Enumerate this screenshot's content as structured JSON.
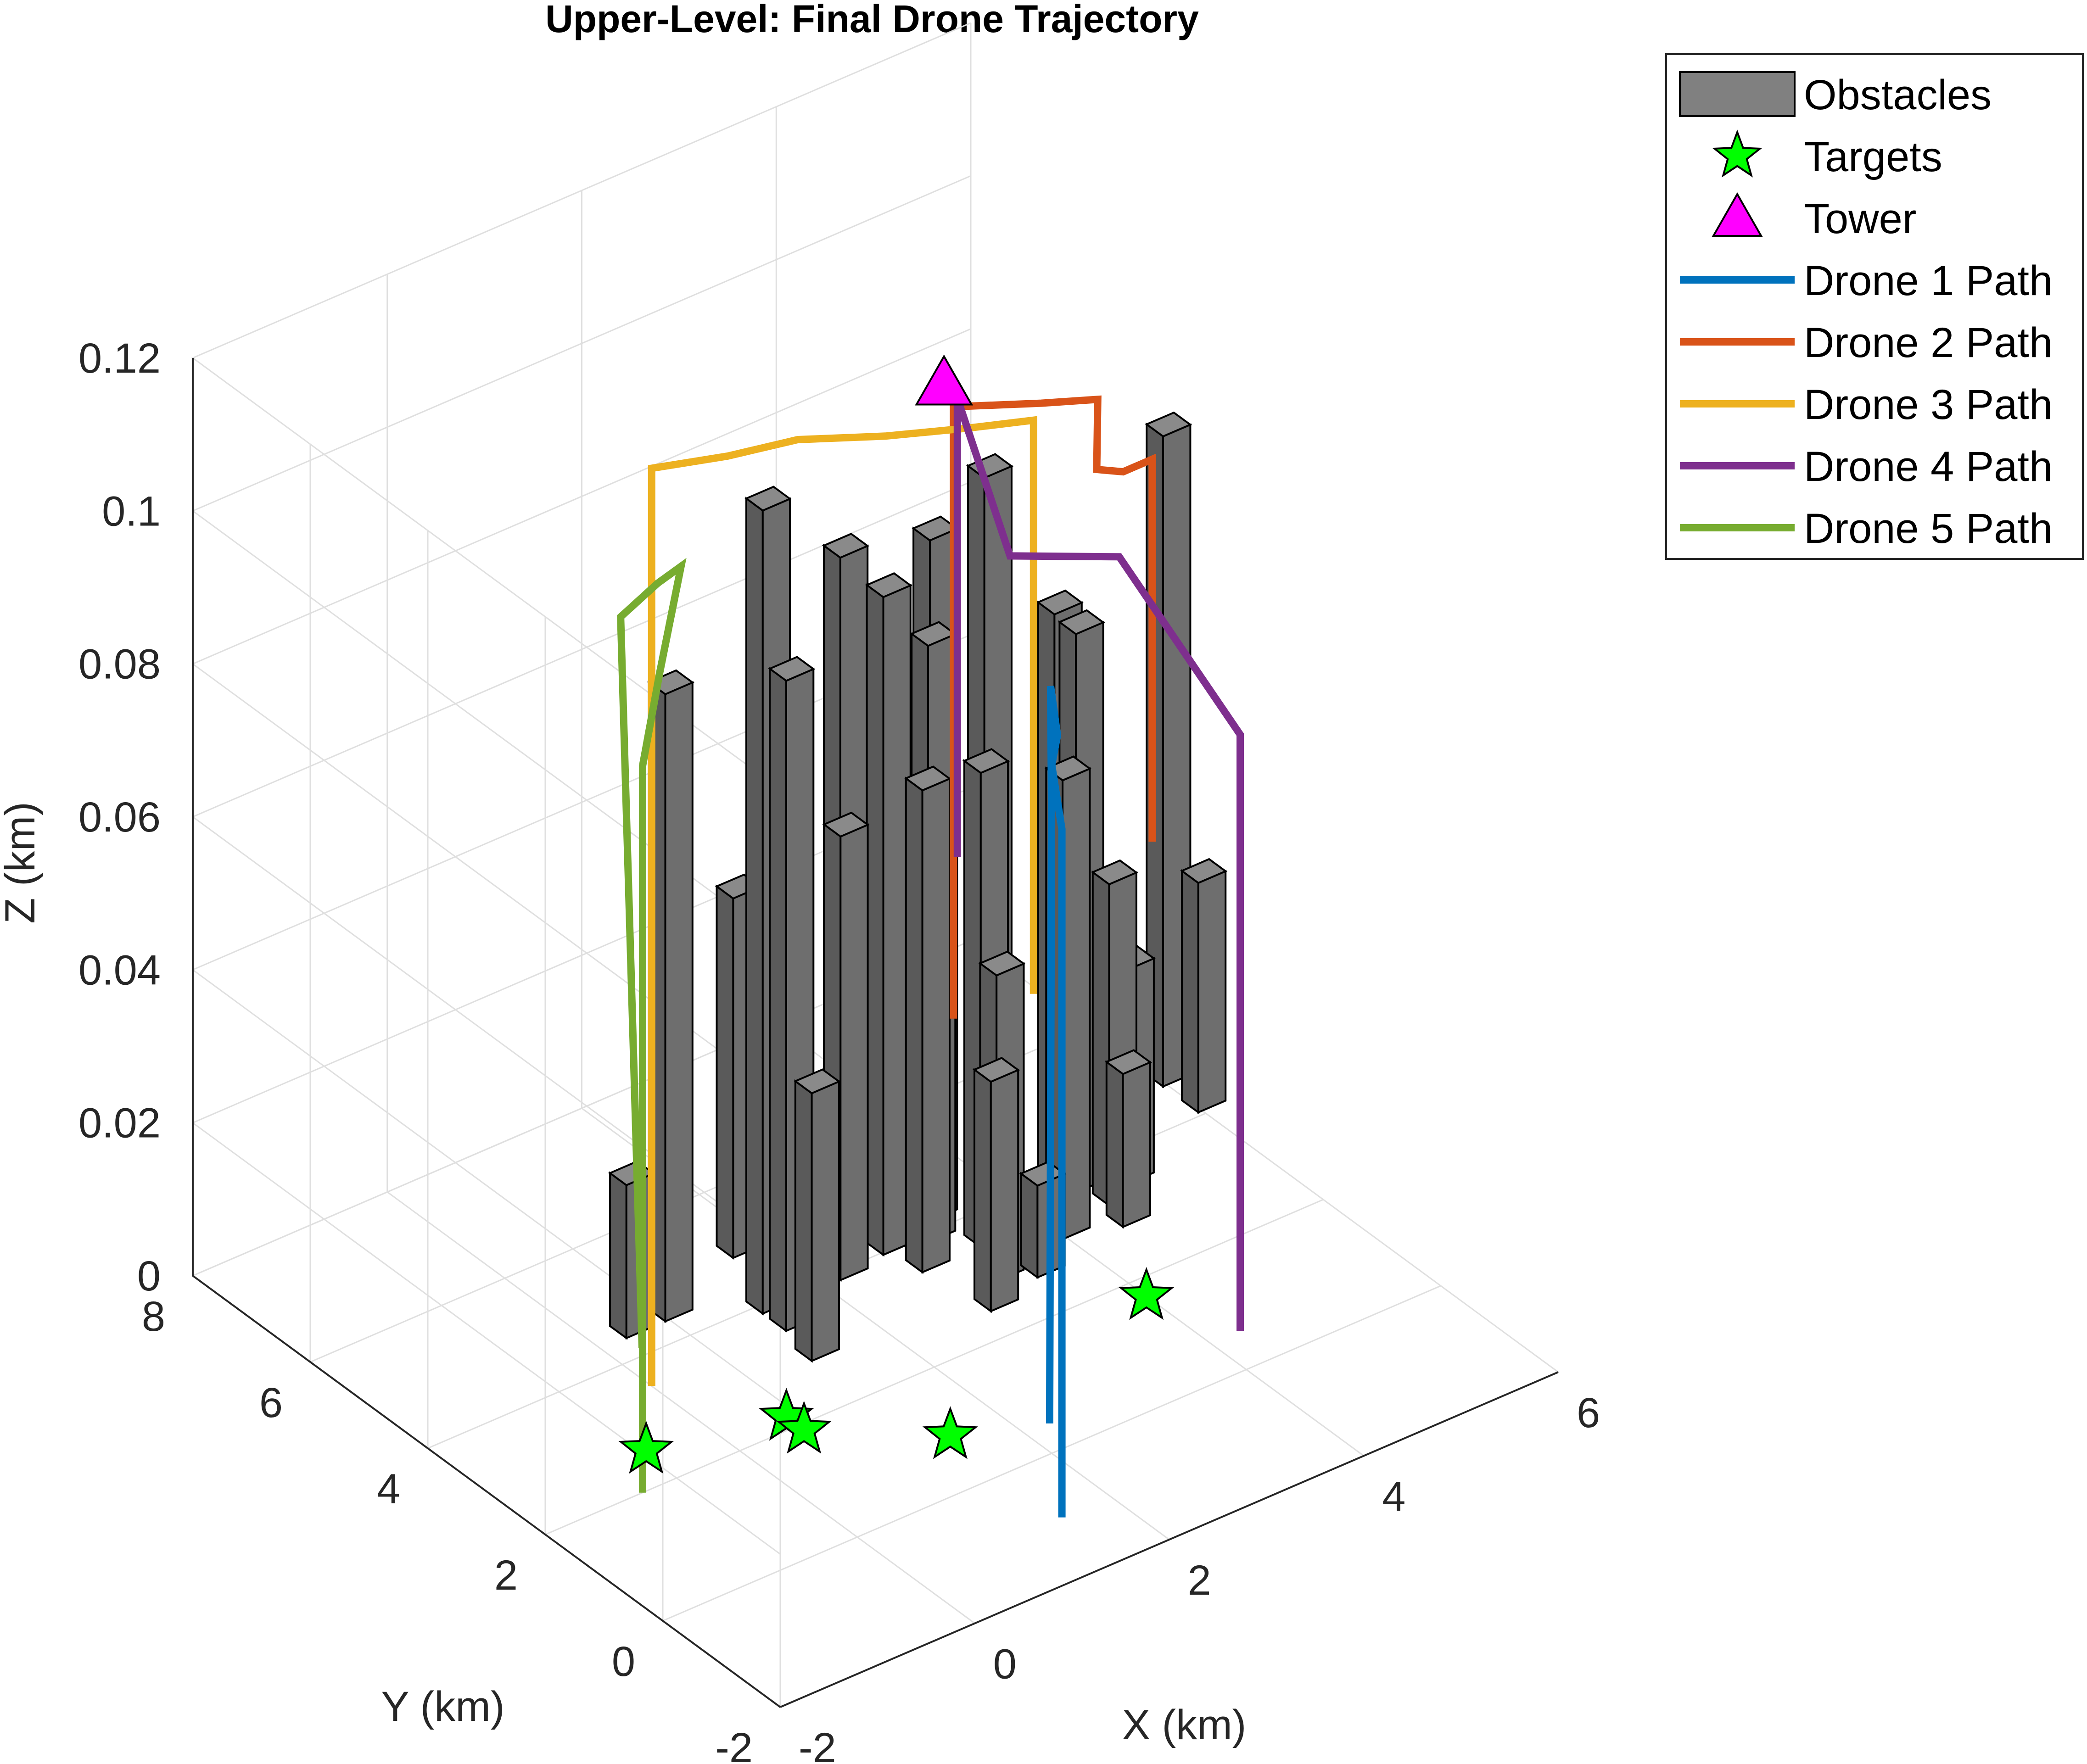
{
  "chart_data": {
    "type": "3d-line",
    "title": "Upper-Level: Final Drone Trajectory",
    "xlabel": "X (km)",
    "ylabel": "Y (km)",
    "zlabel": "Z (km)",
    "xlim": [
      -2,
      6
    ],
    "ylim": [
      -2,
      8
    ],
    "zlim": [
      0,
      0.12
    ],
    "xticks": [
      "-2",
      "0",
      "2",
      "4",
      "6"
    ],
    "yticks": [
      "-2",
      "0",
      "2",
      "4",
      "6",
      "8"
    ],
    "zticks": [
      "0",
      "0.02",
      "0.04",
      "0.06",
      "0.08",
      "0.1",
      "0.12"
    ],
    "grid": true,
    "legend_position": "top-right",
    "legend": [
      {
        "label": "Obstacles",
        "kind": "patch",
        "color": "#808080"
      },
      {
        "label": "Targets",
        "kind": "star",
        "color": "#00ff00"
      },
      {
        "label": "Tower",
        "kind": "triangle",
        "color": "#ff00ff"
      },
      {
        "label": "Drone 1 Path",
        "kind": "line",
        "color": "#0072bd"
      },
      {
        "label": "Drone 2 Path",
        "kind": "line",
        "color": "#d95319"
      },
      {
        "label": "Drone 3 Path",
        "kind": "line",
        "color": "#edb120"
      },
      {
        "label": "Drone 4 Path",
        "kind": "line",
        "color": "#7e2f8e"
      },
      {
        "label": "Drone 5 Path",
        "kind": "line",
        "color": "#77ac30"
      }
    ],
    "obstacles": [
      {
        "x": 0.4,
        "y": 4.5,
        "h": 0.02
      },
      {
        "x": 0.8,
        "y": 4.5,
        "h": 0.082
      },
      {
        "x": 1.8,
        "y": 5.0,
        "h": 0.047
      },
      {
        "x": 1.5,
        "y": 4.0,
        "h": 0.105
      },
      {
        "x": 1.5,
        "y": 3.6,
        "h": 0.085
      },
      {
        "x": 1.4,
        "y": 3.0,
        "h": 0.035
      },
      {
        "x": 2.3,
        "y": 4.0,
        "h": 0.058
      },
      {
        "x": 2.6,
        "y": 4.5,
        "h": 0.09
      },
      {
        "x": 2.8,
        "y": 4.1,
        "h": 0.086
      },
      {
        "x": 2.9,
        "y": 3.6,
        "h": 0.063
      },
      {
        "x": 3.2,
        "y": 4.0,
        "h": 0.078
      },
      {
        "x": 3.4,
        "y": 4.3,
        "h": 0.089
      },
      {
        "x": 3.5,
        "y": 3.6,
        "h": 0.062
      },
      {
        "x": 3.9,
        "y": 4.2,
        "h": 0.095
      },
      {
        "x": 3.3,
        "y": 3.0,
        "h": 0.04
      },
      {
        "x": 3.0,
        "y": 2.6,
        "h": 0.03
      },
      {
        "x": 3.6,
        "y": 2.8,
        "h": 0.012
      },
      {
        "x": 4.1,
        "y": 3.2,
        "h": 0.06
      },
      {
        "x": 4.5,
        "y": 4.0,
        "h": 0.075
      },
      {
        "x": 4.6,
        "y": 3.8,
        "h": 0.073
      },
      {
        "x": 4.7,
        "y": 3.4,
        "h": 0.042
      },
      {
        "x": 4.6,
        "y": 3.0,
        "h": 0.02
      },
      {
        "x": 5.0,
        "y": 3.6,
        "h": 0.028
      },
      {
        "x": 6.1,
        "y": 4.8,
        "h": 0.085
      },
      {
        "x": 6.1,
        "y": 4.2,
        "h": 0.03
      }
    ],
    "targets": [
      {
        "x": -0.6,
        "y": 2.6,
        "z": 0
      },
      {
        "x": 0.6,
        "y": 2.2,
        "z": 0
      },
      {
        "x": 0.6,
        "y": 1.9,
        "z": 0
      },
      {
        "x": 1.5,
        "y": 0.9,
        "z": 0
      },
      {
        "x": 4.0,
        "y": 1.7,
        "z": 0
      }
    ],
    "tower": {
      "x": 2.1,
      "y": 2.0,
      "z": 0.128
    },
    "series": [
      {
        "name": "Drone 1 Path",
        "color": "#0072bd",
        "points": [
          [
            1.5,
            -1.0,
            0
          ],
          [
            1.5,
            -1.0,
            0.09
          ],
          [
            2.0,
            0.0,
            0.09
          ],
          [
            2.3,
            0.4,
            0.09
          ],
          [
            2.35,
            0.6,
            0.095
          ],
          [
            2.3,
            0.5,
            0.08
          ],
          [
            2.25,
            0.45,
            0
          ]
        ]
      },
      {
        "name": "Drone 2 Path",
        "color": "#d95319",
        "points": [
          [
            2.5,
            2.5,
            0.04
          ],
          [
            2.5,
            2.5,
            0.12
          ],
          [
            3.1,
            2.0,
            0.12
          ],
          [
            3.5,
            1.7,
            0.12
          ],
          [
            3.55,
            1.8,
            0.11
          ],
          [
            3.7,
            1.6,
            0.11
          ],
          [
            4.0,
            1.6,
            0.11
          ],
          [
            4.0,
            1.6,
            0.06
          ]
        ]
      },
      {
        "name": "Drone 3 Path",
        "color": "#edb120",
        "points": [
          [
            0.0,
            3.5,
            0
          ],
          [
            0.0,
            3.5,
            0.12
          ],
          [
            0.6,
            3.2,
            0.12
          ],
          [
            1.2,
            3.0,
            0.12
          ],
          [
            1.8,
            2.5,
            0.12
          ],
          [
            2.4,
            2.1,
            0.12
          ],
          [
            2.9,
            1.8,
            0.12
          ],
          [
            2.9,
            1.8,
            0.045
          ]
        ]
      },
      {
        "name": "Drone 4 Path",
        "color": "#7e2f8e",
        "points": [
          [
            4.3,
            0.6,
            0
          ],
          [
            4.3,
            0.6,
            0.078
          ],
          [
            3.6,
            1.5,
            0.1
          ],
          [
            3.2,
            1.9,
            0.1
          ],
          [
            2.9,
            2.2,
            0.1
          ],
          [
            2.6,
            2.6,
            0.12
          ],
          [
            2.6,
            2.6,
            0.06
          ]
        ]
      },
      {
        "name": "Drone 5 Path",
        "color": "#77ac30",
        "points": [
          [
            -1.0,
            2.0,
            0
          ],
          [
            -1.0,
            2.0,
            0.095
          ],
          [
            -0.4,
            2.7,
            0.1
          ],
          [
            0.0,
            3.0,
            0.11
          ],
          [
            -0.3,
            2.9,
            0.11
          ],
          [
            -0.5,
            3.2,
            0.105
          ],
          [
            -0.4,
            3.0,
            0.01
          ]
        ]
      }
    ]
  }
}
